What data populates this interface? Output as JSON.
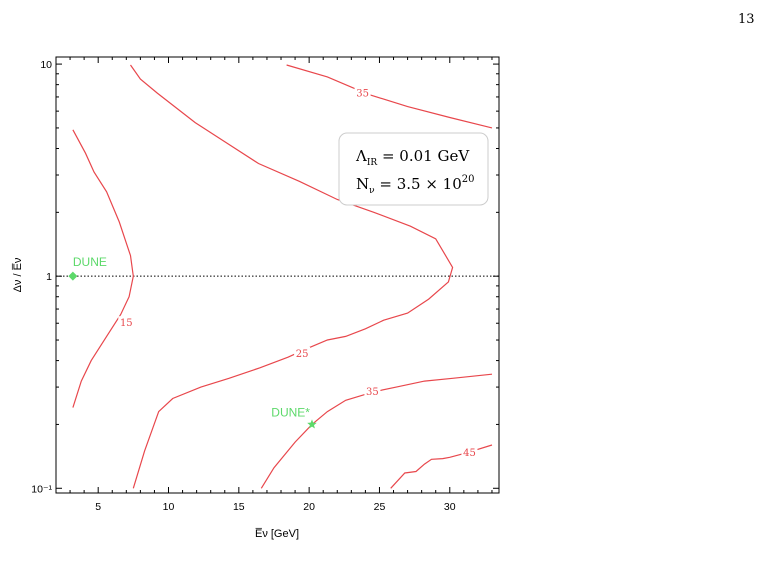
{
  "page": {
    "number": "13"
  },
  "chart_data": {
    "type": "contour",
    "xlabel": "E̅ν [GeV]",
    "ylabel": "Δν / E̅ν",
    "xlim": [
      2,
      33.5
    ],
    "ylim": [
      0.095,
      10.8
    ],
    "yscale": "log",
    "x_ticks": [
      5,
      10,
      15,
      20,
      25,
      30
    ],
    "y_ticks": [
      {
        "value": 0.1,
        "label": "10⁻¹"
      },
      {
        "value": 1,
        "label": "1"
      },
      {
        "value": 10,
        "label": "10"
      }
    ],
    "reference_line": {
      "y": 1,
      "style": "dotted"
    },
    "line_color": "#e8474c",
    "marker_color": "#5cd96a",
    "legend": {
      "line1": {
        "symbol": "Λ",
        "subscript": "IR",
        "text": " = 0.01 GeV"
      },
      "line2": {
        "symbol": "N",
        "subscript": "ν",
        "text": " = 3.5 × 10",
        "superscript": "20"
      }
    },
    "contours": [
      {
        "level": "15",
        "label_at": {
          "x": 7.0,
          "y": 0.6
        },
        "points": [
          [
            3.2,
            0.24
          ],
          [
            3.8,
            0.32
          ],
          [
            4.5,
            0.4
          ],
          [
            5.6,
            0.52
          ],
          [
            6.6,
            0.66
          ],
          [
            7.2,
            0.8
          ],
          [
            7.5,
            1.0
          ],
          [
            7.3,
            1.25
          ],
          [
            6.5,
            1.8
          ],
          [
            5.6,
            2.5
          ],
          [
            4.7,
            3.1
          ],
          [
            4.1,
            3.8
          ],
          [
            3.2,
            4.9
          ]
        ]
      },
      {
        "level": "25",
        "label_at": {
          "x": 19.5,
          "y": 0.43
        },
        "points": [
          [
            7.5,
            0.1
          ],
          [
            8.3,
            0.15
          ],
          [
            9.3,
            0.23
          ],
          [
            10.3,
            0.265
          ],
          [
            12.3,
            0.3
          ],
          [
            14.3,
            0.33
          ],
          [
            16.5,
            0.37
          ],
          [
            18.5,
            0.415
          ],
          [
            20.0,
            0.46
          ],
          [
            21.3,
            0.5
          ],
          [
            22.6,
            0.52
          ],
          [
            24.0,
            0.565
          ],
          [
            25.3,
            0.62
          ],
          [
            27.0,
            0.67
          ],
          [
            28.5,
            0.78
          ],
          [
            29.9,
            0.94
          ],
          [
            30.2,
            1.1
          ],
          [
            29.0,
            1.5
          ],
          [
            27.2,
            1.72
          ],
          [
            24.6,
            2.0
          ],
          [
            22.0,
            2.3
          ],
          [
            19.3,
            2.8
          ],
          [
            16.4,
            3.4
          ],
          [
            14.0,
            4.3
          ],
          [
            11.9,
            5.3
          ],
          [
            9.2,
            7.3
          ],
          [
            8.0,
            8.5
          ],
          [
            7.3,
            9.9
          ]
        ]
      },
      {
        "level": "35",
        "label_at": {
          "x": 24.5,
          "y": 0.285
        },
        "points": [
          [
            16.6,
            0.1
          ],
          [
            17.5,
            0.125
          ],
          [
            19.0,
            0.165
          ],
          [
            20.2,
            0.2
          ],
          [
            21.3,
            0.23
          ],
          [
            22.6,
            0.26
          ],
          [
            24.6,
            0.285
          ],
          [
            26.2,
            0.3
          ],
          [
            28.2,
            0.32
          ],
          [
            30.2,
            0.33
          ],
          [
            33.0,
            0.345
          ]
        ]
      },
      {
        "level": "35",
        "label_at": {
          "x": 23.8,
          "y": 7.25
        },
        "points": [
          [
            18.4,
            9.9
          ],
          [
            21.3,
            8.7
          ],
          [
            24.2,
            7.2
          ],
          [
            27.0,
            6.3
          ],
          [
            30.0,
            5.6
          ],
          [
            33.0,
            5.0
          ]
        ]
      },
      {
        "level": "45",
        "label_at": {
          "x": 31.4,
          "y": 0.147
        },
        "points": [
          [
            25.8,
            0.1
          ],
          [
            26.8,
            0.118
          ],
          [
            27.6,
            0.12
          ],
          [
            28.2,
            0.13
          ],
          [
            28.7,
            0.137
          ],
          [
            29.5,
            0.138
          ],
          [
            30.0,
            0.14
          ],
          [
            31.2,
            0.147
          ],
          [
            33.0,
            0.16
          ]
        ]
      }
    ],
    "markers": [
      {
        "label": "DUNE",
        "x": 3.2,
        "y": 1.0,
        "shape": "diamond",
        "label_offset": "above-right"
      },
      {
        "label": "DUNE*",
        "x": 20.2,
        "y": 0.2,
        "shape": "star",
        "label_offset": "above-left"
      }
    ]
  }
}
